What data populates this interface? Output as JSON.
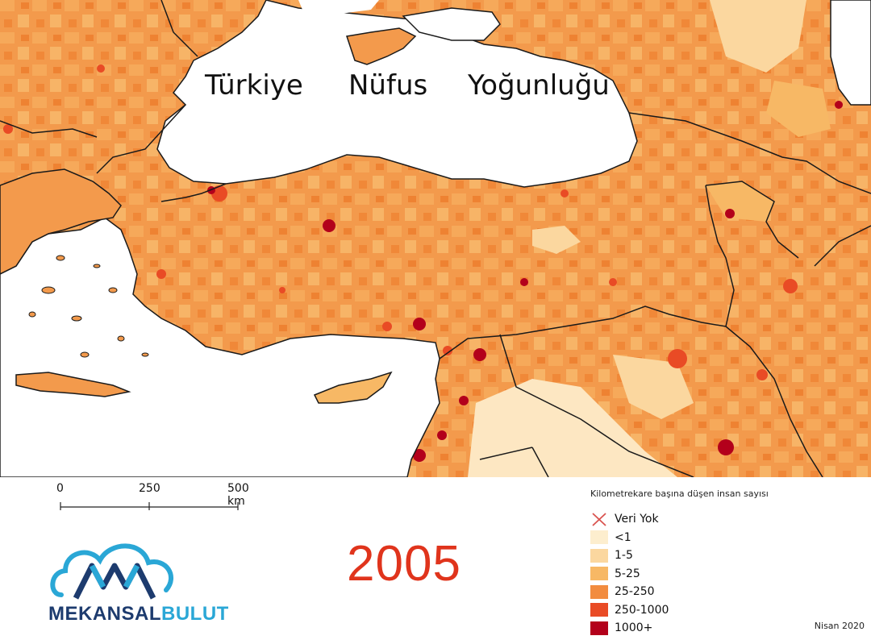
{
  "title": {
    "w1": "Türkiye",
    "w2": "Nüfus",
    "w3": "Yoğunluğu"
  },
  "scale_bar": {
    "labels": [
      "0",
      "250",
      "500 km"
    ]
  },
  "year": "2005",
  "logo": {
    "part1": "MEKANSAL",
    "part2": "BULUT"
  },
  "legend": {
    "title": "Kilometrekare başına düşen insan sayısı",
    "items": [
      {
        "label": "Veri Yok",
        "color": "#d9534f",
        "icon": "x-cross"
      },
      {
        "label": "<1",
        "color": "#fdeece"
      },
      {
        "label": "1-5",
        "color": "#fbd79f"
      },
      {
        "label": "5-25",
        "color": "#f7b865"
      },
      {
        "label": "25-250",
        "color": "#f28c3f"
      },
      {
        "label": "250-1000",
        "color": "#e94b25"
      },
      {
        "label": "1000+",
        "color": "#b3001b"
      }
    ]
  },
  "date": "Nisan 2020",
  "colors": {
    "sea": "#ffffff",
    "border": "#1a1a1a",
    "land_base": "#f39a4c"
  }
}
